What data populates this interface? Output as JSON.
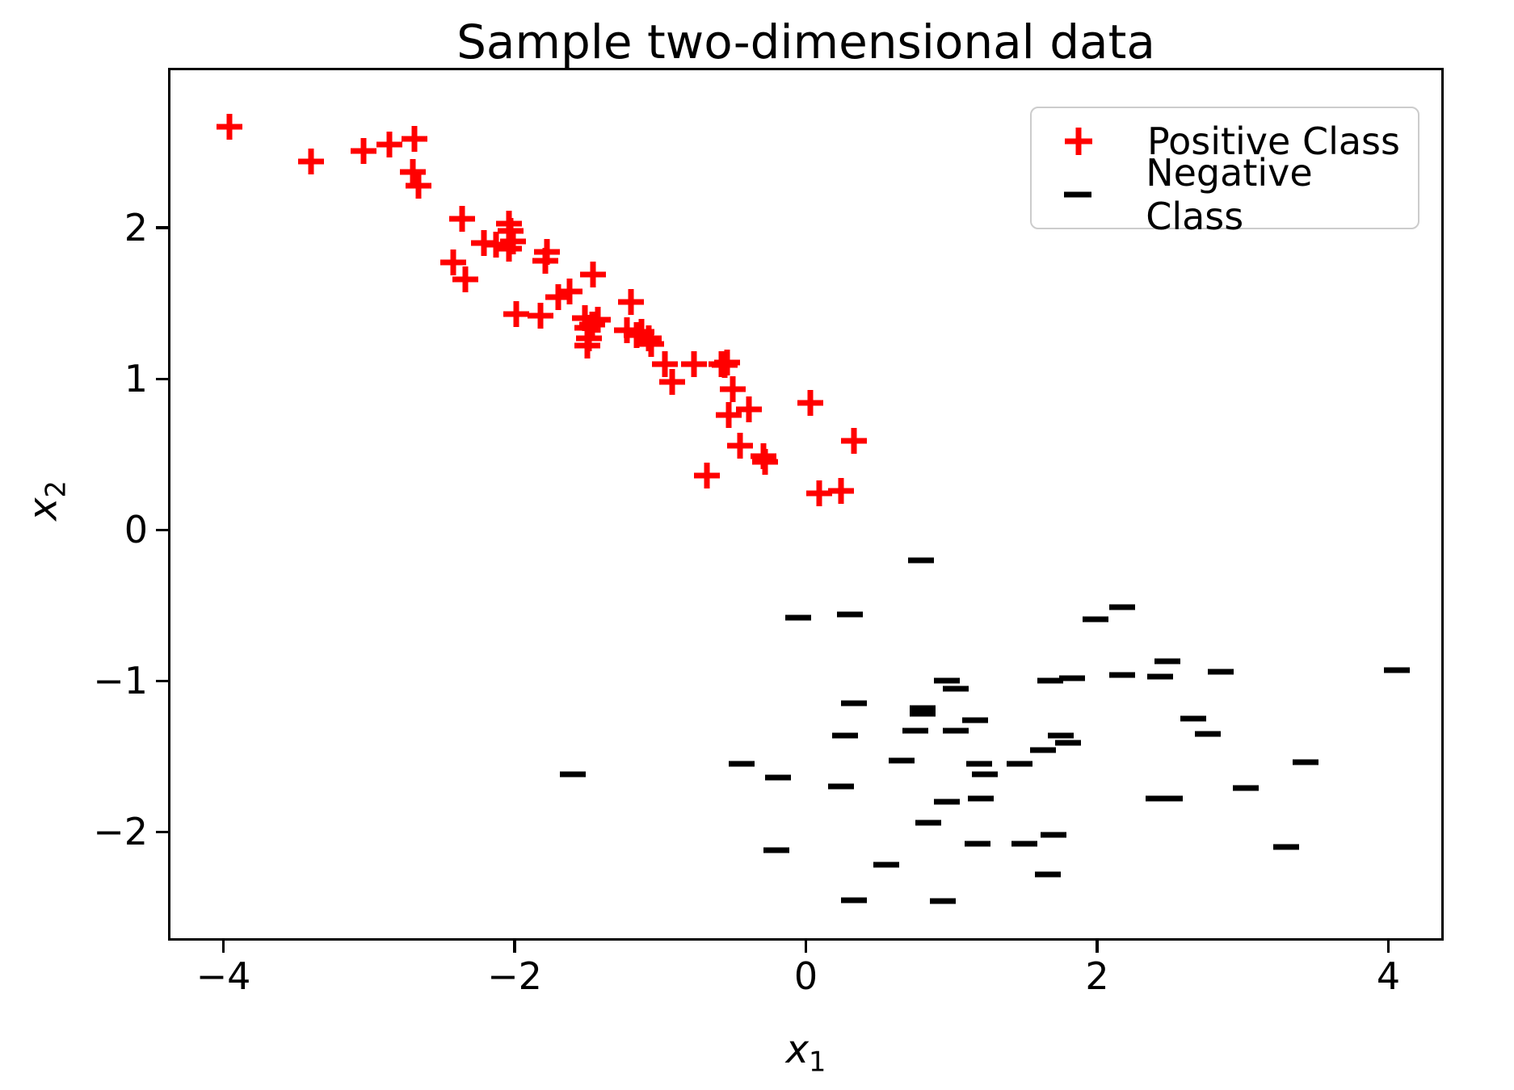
{
  "title": "Sample two-dimensional data",
  "axes": {
    "xlabel_base": "x",
    "xlabel_sub": "1",
    "ylabel_base": "x",
    "ylabel_sub": "2"
  },
  "colors": {
    "positive": "#ff0000",
    "negative": "#000000",
    "legend_border": "#cccccc",
    "background": "#ffffff"
  },
  "chart_data": {
    "type": "scatter",
    "title": "Sample two-dimensional data",
    "xlabel": "x_1",
    "ylabel": "x_2",
    "xlim": [
      -4.38,
      4.38
    ],
    "ylim": [
      -2.72,
      3.06
    ],
    "grid": false,
    "x_ticks": [
      -4,
      -2,
      0,
      2,
      4
    ],
    "x_tick_labels": [
      "−4",
      "−2",
      "0",
      "2",
      "4"
    ],
    "y_ticks": [
      -2,
      -1,
      0,
      1,
      2
    ],
    "y_tick_labels": [
      "−2",
      "−1",
      "0",
      "1",
      "2"
    ],
    "legend": {
      "position": "upper right",
      "entries": [
        {
          "label": "Positive Class",
          "marker": "plus",
          "color": "#ff0000"
        },
        {
          "label": "Negative Class",
          "marker": "minus",
          "color": "#000000"
        }
      ]
    },
    "series": [
      {
        "name": "Positive Class",
        "marker": "plus",
        "color": "#ff0000",
        "points": [
          [
            -3.96,
            2.67
          ],
          [
            -3.4,
            2.44
          ],
          [
            -3.04,
            2.51
          ],
          [
            -2.86,
            2.55
          ],
          [
            -2.69,
            2.59
          ],
          [
            -2.7,
            2.37
          ],
          [
            -2.66,
            2.28
          ],
          [
            -2.36,
            2.06
          ],
          [
            -2.04,
            2.03
          ],
          [
            -2.03,
            1.98
          ],
          [
            -2.21,
            1.9
          ],
          [
            -2.13,
            1.89
          ],
          [
            -2.04,
            1.86
          ],
          [
            -2.42,
            1.77
          ],
          [
            -2.34,
            1.66
          ],
          [
            -1.99,
            1.43
          ],
          [
            -1.78,
            1.84
          ],
          [
            -1.79,
            1.78
          ],
          [
            -1.46,
            1.69
          ],
          [
            -1.62,
            1.58
          ],
          [
            -1.7,
            1.54
          ],
          [
            -1.82,
            1.42
          ],
          [
            -1.52,
            1.4
          ],
          [
            -1.43,
            1.39
          ],
          [
            -1.5,
            1.34
          ],
          [
            -1.49,
            1.27
          ],
          [
            -1.5,
            1.22
          ],
          [
            -1.2,
            1.51
          ],
          [
            -1.23,
            1.32
          ],
          [
            -1.13,
            1.31
          ],
          [
            -1.08,
            1.27
          ],
          [
            -1.06,
            1.23
          ],
          [
            -0.97,
            1.1
          ],
          [
            -0.92,
            0.98
          ],
          [
            -0.77,
            1.1
          ],
          [
            -0.58,
            1.1
          ],
          [
            -0.54,
            1.11
          ],
          [
            -0.5,
            0.93
          ],
          [
            -0.53,
            0.76
          ],
          [
            -0.39,
            0.8
          ],
          [
            0.03,
            0.84
          ],
          [
            -0.45,
            0.56
          ],
          [
            -0.29,
            0.49
          ],
          [
            -0.28,
            0.45
          ],
          [
            0.33,
            0.59
          ],
          [
            -0.68,
            0.36
          ],
          [
            0.09,
            0.24
          ],
          [
            0.24,
            0.26
          ],
          [
            -2.01,
            1.91
          ],
          [
            -1.47,
            1.36
          ],
          [
            -1.16,
            1.29
          ],
          [
            -0.56,
            1.09
          ]
        ]
      },
      {
        "name": "Negative Class",
        "marker": "minus",
        "color": "#000000",
        "points": [
          [
            0.79,
            -0.2
          ],
          [
            -0.05,
            -0.58
          ],
          [
            0.3,
            -0.56
          ],
          [
            0.97,
            -1.0
          ],
          [
            1.03,
            -1.05
          ],
          [
            0.33,
            -1.15
          ],
          [
            0.8,
            -1.18
          ],
          [
            0.8,
            -1.22
          ],
          [
            2.17,
            -0.51
          ],
          [
            1.99,
            -0.59
          ],
          [
            2.48,
            -0.87
          ],
          [
            1.68,
            -1.0
          ],
          [
            1.83,
            -0.98
          ],
          [
            2.17,
            -0.96
          ],
          [
            2.43,
            -0.97
          ],
          [
            2.85,
            -0.94
          ],
          [
            4.06,
            -0.93
          ],
          [
            2.66,
            -1.25
          ],
          [
            -1.6,
            -1.62
          ],
          [
            -0.44,
            -1.55
          ],
          [
            -0.19,
            -1.64
          ],
          [
            0.24,
            -1.7
          ],
          [
            0.27,
            -1.36
          ],
          [
            0.75,
            -1.33
          ],
          [
            1.03,
            -1.33
          ],
          [
            1.16,
            -1.26
          ],
          [
            0.66,
            -1.53
          ],
          [
            1.19,
            -1.55
          ],
          [
            1.23,
            -1.62
          ],
          [
            0.97,
            -1.8
          ],
          [
            1.2,
            -1.78
          ],
          [
            0.84,
            -1.94
          ],
          [
            1.18,
            -2.08
          ],
          [
            -0.2,
            -2.12
          ],
          [
            0.55,
            -2.22
          ],
          [
            0.33,
            -2.45
          ],
          [
            0.94,
            -2.46
          ],
          [
            2.76,
            -1.35
          ],
          [
            1.75,
            -1.36
          ],
          [
            1.8,
            -1.41
          ],
          [
            1.63,
            -1.46
          ],
          [
            1.47,
            -1.55
          ],
          [
            2.42,
            -1.78
          ],
          [
            2.5,
            -1.78
          ],
          [
            3.02,
            -1.71
          ],
          [
            3.43,
            -1.54
          ],
          [
            3.3,
            -2.1
          ],
          [
            1.7,
            -2.02
          ],
          [
            1.5,
            -2.08
          ],
          [
            1.66,
            -2.28
          ]
        ]
      }
    ]
  }
}
